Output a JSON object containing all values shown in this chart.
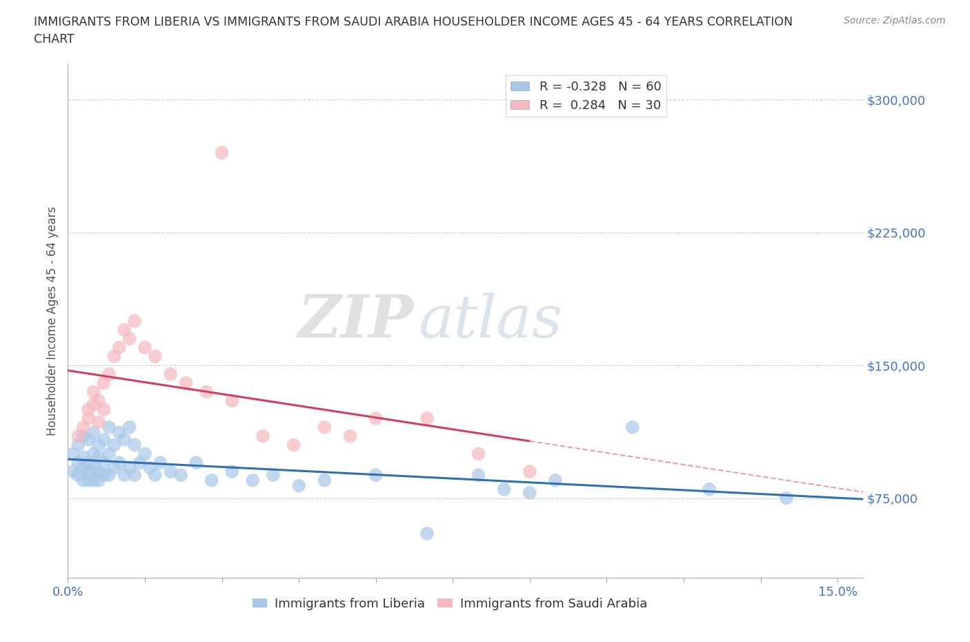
{
  "title_line1": "IMMIGRANTS FROM LIBERIA VS IMMIGRANTS FROM SAUDI ARABIA HOUSEHOLDER INCOME AGES 45 - 64 YEARS CORRELATION",
  "title_line2": "CHART",
  "source": "Source: ZipAtlas.com",
  "ylabel": "Householder Income Ages 45 - 64 years",
  "xlim": [
    0.0,
    0.155
  ],
  "ylim": [
    30000,
    320000
  ],
  "yticks": [
    75000,
    150000,
    225000,
    300000
  ],
  "xticks": [
    0.0,
    0.015,
    0.03,
    0.045,
    0.06,
    0.075,
    0.09,
    0.105,
    0.12,
    0.135,
    0.15
  ],
  "xtick_labels": [
    "0.0%",
    "",
    "",
    "",
    "",
    "",
    "",
    "",
    "",
    "",
    "15.0%"
  ],
  "liberia_color": "#a8c8e8",
  "saudi_color": "#f4b8c0",
  "liberia_line_color": "#3070b0",
  "saudi_line_color": "#d04060",
  "saudi_dash_color": "#e8a0b0",
  "liberia_r": -0.328,
  "liberia_n": 60,
  "saudi_r": 0.284,
  "saudi_n": 30,
  "legend_label_1": "Immigrants from Liberia",
  "legend_label_2": "Immigrants from Saudi Arabia",
  "watermark_zip": "ZIP",
  "watermark_atlas": "atlas",
  "background_color": "#ffffff",
  "grid_color": "#cccccc",
  "ytick_color": "#4472c4",
  "xtick_color": "#4472c4",
  "liberia_x": [
    0.001,
    0.001,
    0.002,
    0.002,
    0.002,
    0.003,
    0.003,
    0.003,
    0.003,
    0.004,
    0.004,
    0.004,
    0.004,
    0.005,
    0.005,
    0.005,
    0.005,
    0.006,
    0.006,
    0.006,
    0.006,
    0.007,
    0.007,
    0.007,
    0.008,
    0.008,
    0.008,
    0.009,
    0.009,
    0.01,
    0.01,
    0.011,
    0.011,
    0.012,
    0.012,
    0.013,
    0.013,
    0.014,
    0.015,
    0.016,
    0.017,
    0.018,
    0.02,
    0.022,
    0.025,
    0.028,
    0.032,
    0.036,
    0.04,
    0.045,
    0.05,
    0.06,
    0.07,
    0.08,
    0.085,
    0.09,
    0.095,
    0.11,
    0.125,
    0.14
  ],
  "liberia_y": [
    100000,
    90000,
    105000,
    95000,
    88000,
    110000,
    98000,
    92000,
    85000,
    108000,
    95000,
    90000,
    85000,
    112000,
    100000,
    92000,
    85000,
    105000,
    98000,
    90000,
    85000,
    108000,
    95000,
    88000,
    115000,
    100000,
    88000,
    105000,
    92000,
    112000,
    95000,
    108000,
    88000,
    115000,
    92000,
    105000,
    88000,
    95000,
    100000,
    92000,
    88000,
    95000,
    90000,
    88000,
    95000,
    85000,
    90000,
    85000,
    88000,
    82000,
    85000,
    88000,
    55000,
    88000,
    80000,
    78000,
    85000,
    115000,
    80000,
    75000
  ],
  "saudi_x": [
    0.002,
    0.003,
    0.004,
    0.004,
    0.005,
    0.005,
    0.006,
    0.006,
    0.007,
    0.007,
    0.008,
    0.009,
    0.01,
    0.011,
    0.012,
    0.013,
    0.015,
    0.017,
    0.02,
    0.023,
    0.027,
    0.032,
    0.038,
    0.044,
    0.05,
    0.055,
    0.06,
    0.07,
    0.08,
    0.09
  ],
  "saudi_y": [
    110000,
    115000,
    125000,
    120000,
    135000,
    128000,
    130000,
    118000,
    140000,
    125000,
    145000,
    155000,
    160000,
    170000,
    165000,
    175000,
    160000,
    155000,
    145000,
    140000,
    135000,
    130000,
    110000,
    105000,
    115000,
    110000,
    120000,
    120000,
    100000,
    90000
  ],
  "saudi_outlier_x": [
    0.03
  ],
  "saudi_outlier_y": [
    270000
  ]
}
